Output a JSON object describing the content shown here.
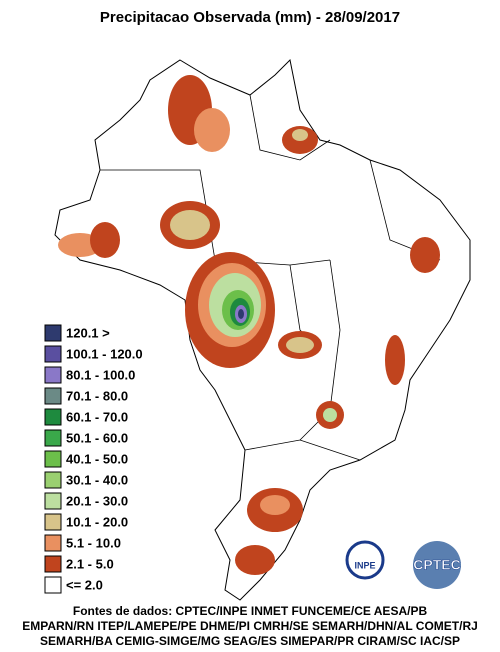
{
  "title": "Precipitacao Observada (mm) - 28/09/2017",
  "legend": [
    {
      "label": "120.1 >",
      "color": "#2e3a6e"
    },
    {
      "label": "100.1 - 120.0",
      "color": "#5a4fa0"
    },
    {
      "label": "80.1 - 100.0",
      "color": "#8a78c8"
    },
    {
      "label": "70.1 - 80.0",
      "color": "#6b8a86"
    },
    {
      "label": "60.1 - 70.0",
      "color": "#1e8a3e"
    },
    {
      "label": "50.1 - 60.0",
      "color": "#3aa84a"
    },
    {
      "label": "40.1 - 50.0",
      "color": "#6cbf4a"
    },
    {
      "label": "30.1 - 40.0",
      "color": "#9ad070"
    },
    {
      "label": "20.1 - 30.0",
      "color": "#bcdfa0"
    },
    {
      "label": "10.1 - 20.0",
      "color": "#d8c48a"
    },
    {
      "label": "5.1 - 10.0",
      "color": "#e99060"
    },
    {
      "label": "2.1 - 5.0",
      "color": "#c0441e"
    },
    {
      "label": "<= 2.0",
      "color": "#ffffff"
    }
  ],
  "sources": [
    "Fontes de dados: CPTEC/INPE INMET FUNCEME/CE AESA/PB",
    "EMPARN/RN ITEP/LAMEPE/PE DHME/PI CMRH/SE SEMARH/DHN/AL COMET/RJ",
    "SEMARH/BA CEMIG-SIMGE/MG SEAG/ES SIMEPAR/PR CIRAM/SC IAC/SP"
  ],
  "logos": [
    "INPE",
    "CPTEC"
  ]
}
